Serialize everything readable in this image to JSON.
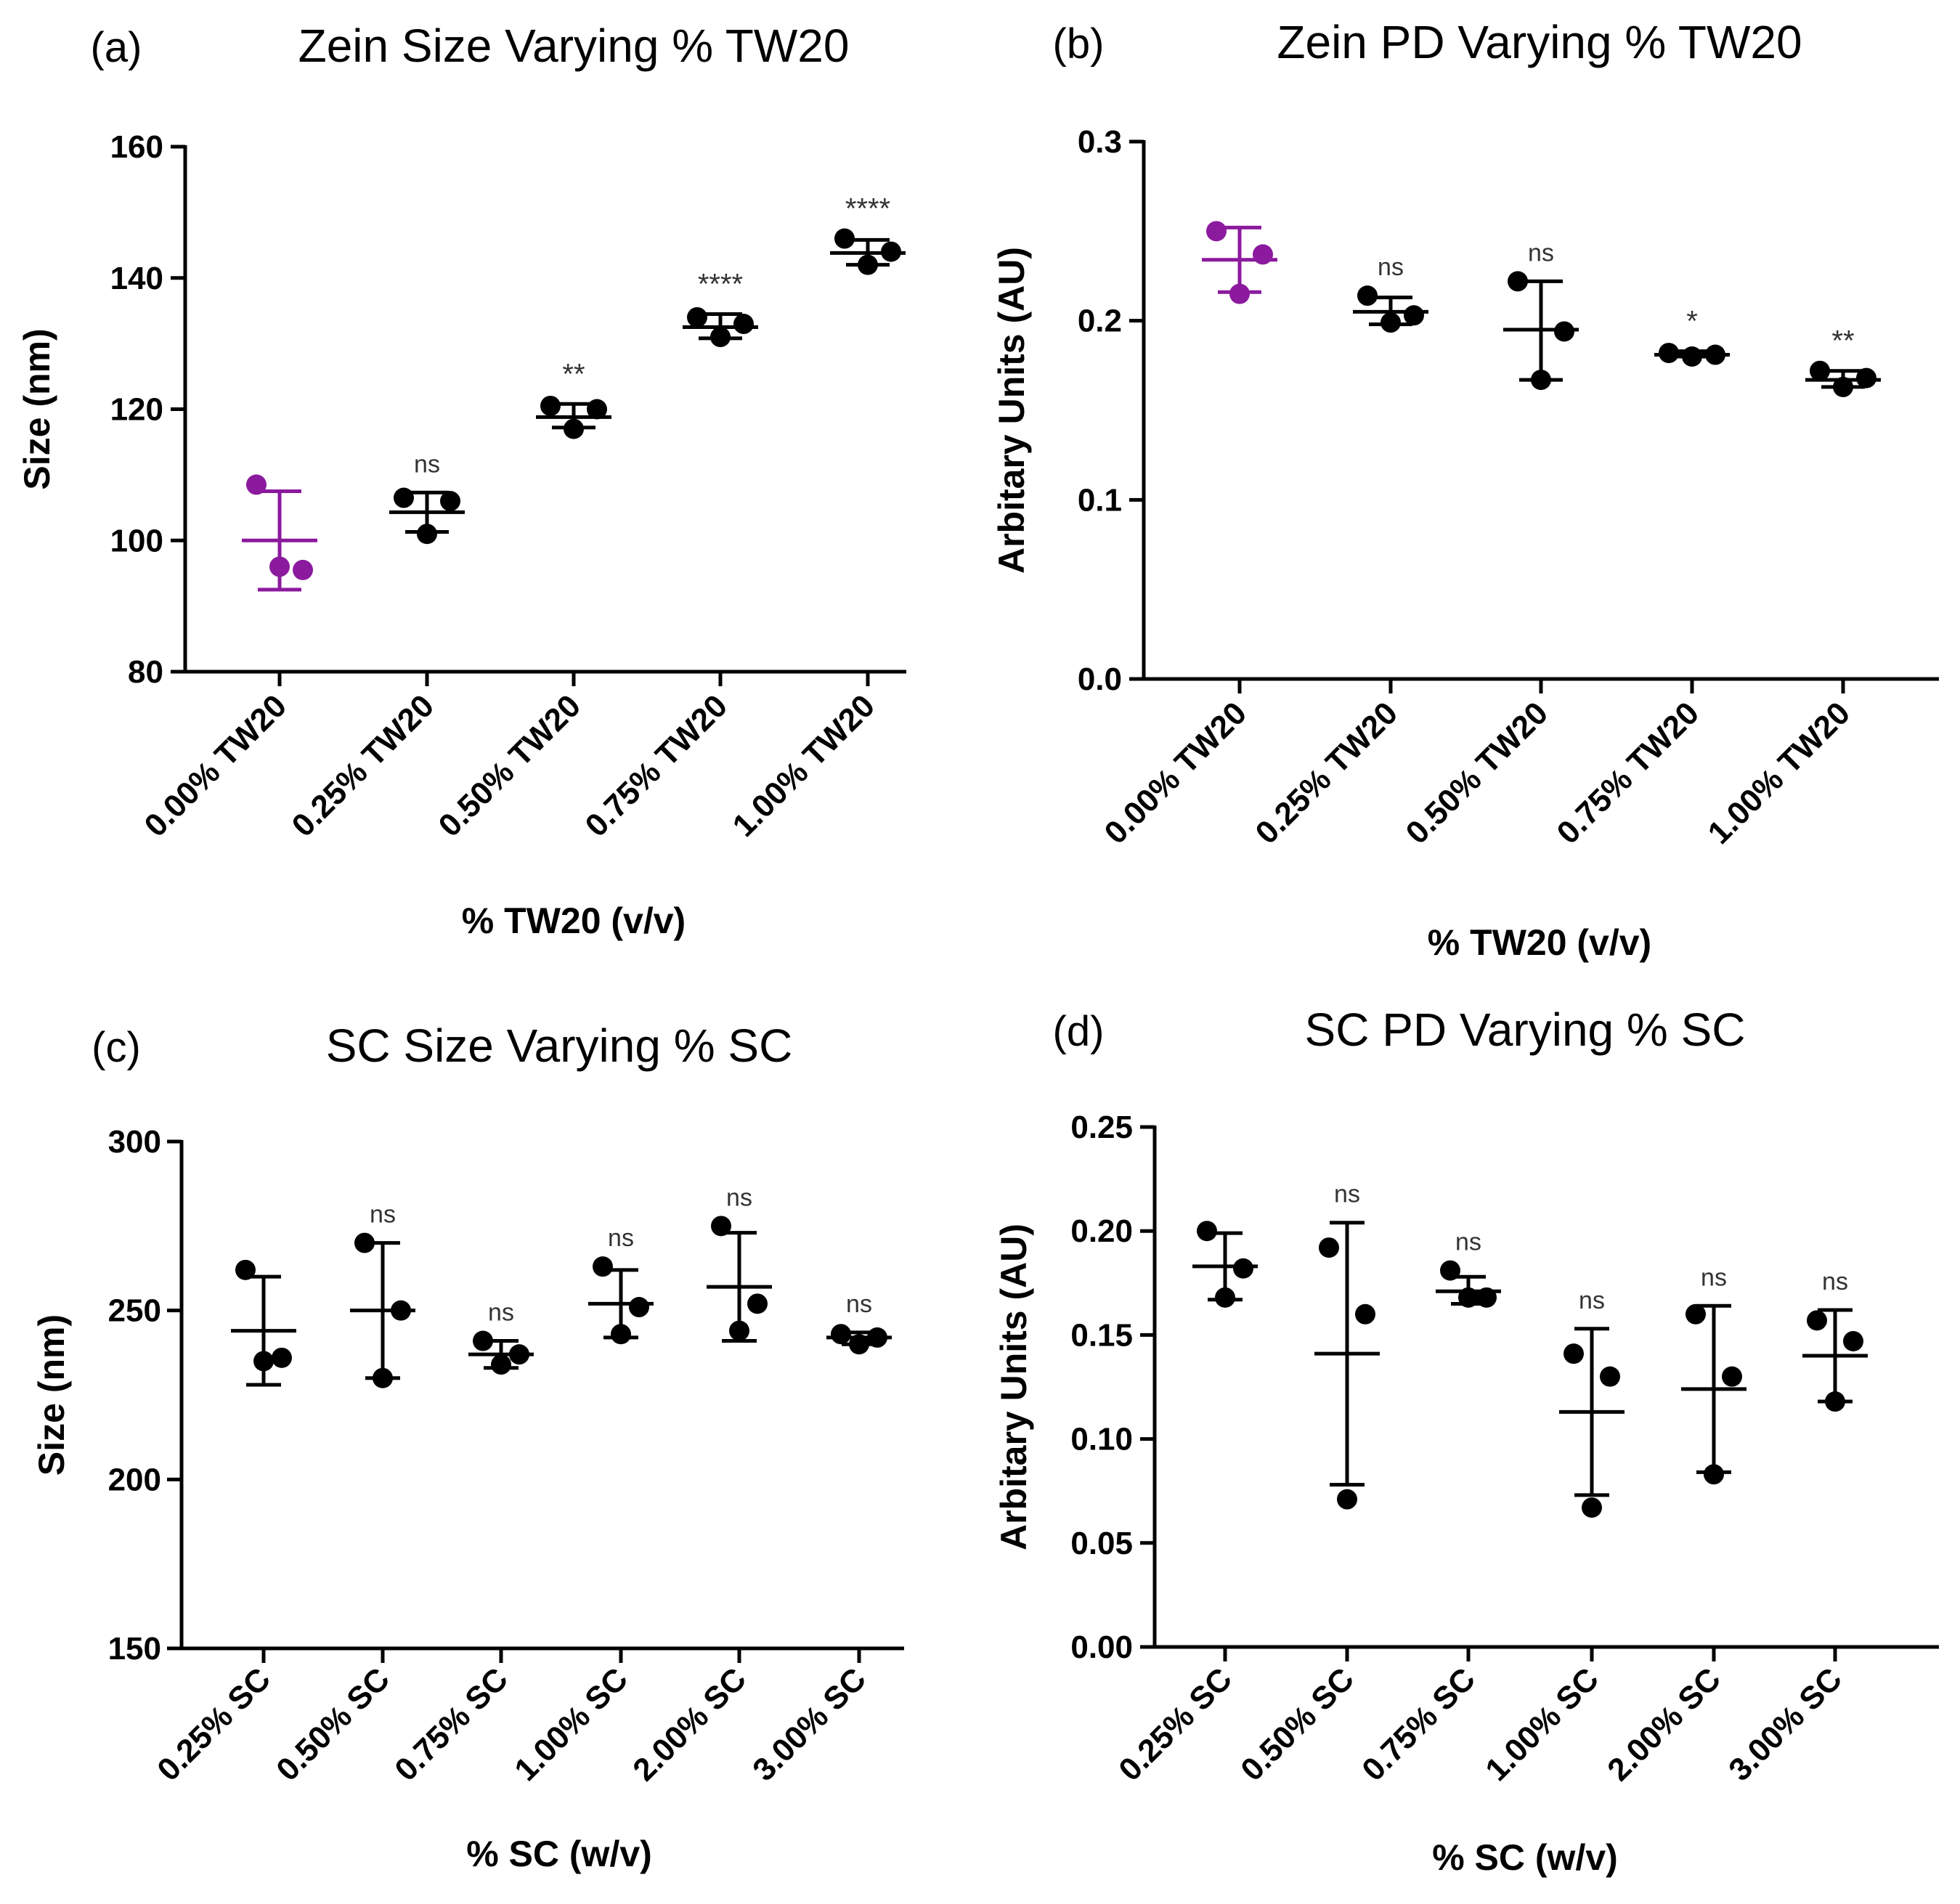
{
  "colors": {
    "control": "#8B1A9E",
    "default": "#000000"
  },
  "chart_data": [
    {
      "panel": "(a)",
      "type": "scatter",
      "title": "Zein Size Varying % TW20",
      "xlabel": "% TW20 (v/v)",
      "ylabel": "Size (nm)",
      "ylim": [
        80,
        160
      ],
      "yticks": [
        "80",
        "100",
        "120",
        "140",
        "160"
      ],
      "categories": [
        "0.00% TW20",
        "0.25% TW20",
        "0.50% TW20",
        "0.75% TW20",
        "1.00% TW20"
      ],
      "groups": [
        {
          "points": [
            108.5,
            95.5,
            96
          ],
          "mean": 100,
          "sd_low": 92.5,
          "sd_high": 107.5,
          "sig": "",
          "control": true
        },
        {
          "points": [
            106.5,
            106,
            101
          ],
          "mean": 104.3,
          "sd_low": 101.3,
          "sd_high": 107.3,
          "sig": "ns",
          "control": false
        },
        {
          "points": [
            120.5,
            120,
            117
          ],
          "mean": 118.8,
          "sd_low": 117.2,
          "sd_high": 120.8,
          "sig": "**",
          "control": false
        },
        {
          "points": [
            134,
            133,
            131
          ],
          "mean": 132.5,
          "sd_low": 130.8,
          "sd_high": 134.5,
          "sig": "****",
          "control": false
        },
        {
          "points": [
            146,
            144,
            142
          ],
          "mean": 143.8,
          "sd_low": 142,
          "sd_high": 145.8,
          "sig": "****",
          "control": false
        }
      ]
    },
    {
      "panel": "(b)",
      "type": "scatter",
      "title": "Zein PD Varying % TW20",
      "xlabel": "% TW20 (v/v)",
      "ylabel": "Arbitary Units (AU)",
      "ylim": [
        0,
        0.3
      ],
      "yticks": [
        "0.0",
        "0.1",
        "0.2",
        "0.3"
      ],
      "categories": [
        "0.00% TW20",
        "0.25% TW20",
        "0.50% TW20",
        "0.75% TW20",
        "1.00% TW20"
      ],
      "groups": [
        {
          "points": [
            0.25,
            0.237,
            0.215
          ],
          "mean": 0.234,
          "sd_low": 0.216,
          "sd_high": 0.252,
          "sig": "",
          "control": true
        },
        {
          "points": [
            0.214,
            0.203,
            0.199
          ],
          "mean": 0.205,
          "sd_low": 0.198,
          "sd_high": 0.213,
          "sig": "ns",
          "control": false
        },
        {
          "points": [
            0.222,
            0.194,
            0.167
          ],
          "mean": 0.195,
          "sd_low": 0.167,
          "sd_high": 0.222,
          "sig": "ns",
          "control": false
        },
        {
          "points": [
            0.182,
            0.181,
            0.18
          ],
          "mean": 0.181,
          "sd_low": 0.18,
          "sd_high": 0.183,
          "sig": "*",
          "control": false
        },
        {
          "points": [
            0.172,
            0.168,
            0.163
          ],
          "mean": 0.167,
          "sd_low": 0.163,
          "sd_high": 0.172,
          "sig": "**",
          "control": false
        }
      ]
    },
    {
      "panel": "(c)",
      "type": "scatter",
      "title": "SC Size Varying % SC",
      "xlabel": "% SC (w/v)",
      "ylabel": "Size (nm)",
      "ylim": [
        150,
        300
      ],
      "yticks": [
        "150",
        "200",
        "250",
        "300"
      ],
      "categories": [
        "0.25% SC",
        "0.50% SC",
        "0.75% SC",
        "1.00% SC",
        "2.00% SC",
        "3.00% SC"
      ],
      "groups": [
        {
          "points": [
            262,
            236,
            235
          ],
          "mean": 244,
          "sd_low": 228,
          "sd_high": 260,
          "sig": "",
          "control": false
        },
        {
          "points": [
            270,
            250,
            230
          ],
          "mean": 250,
          "sd_low": 230,
          "sd_high": 270,
          "sig": "ns",
          "control": false
        },
        {
          "points": [
            241,
            237,
            234
          ],
          "mean": 237,
          "sd_low": 233,
          "sd_high": 241,
          "sig": "ns",
          "control": false
        },
        {
          "points": [
            263,
            251,
            243
          ],
          "mean": 252,
          "sd_low": 242,
          "sd_high": 262,
          "sig": "ns",
          "control": false
        },
        {
          "points": [
            275,
            252,
            244
          ],
          "mean": 257,
          "sd_low": 241,
          "sd_high": 273,
          "sig": "ns",
          "control": false
        },
        {
          "points": [
            243,
            242,
            240
          ],
          "mean": 242,
          "sd_low": 240,
          "sd_high": 243.5,
          "sig": "ns",
          "control": false
        }
      ]
    },
    {
      "panel": "(d)",
      "type": "scatter",
      "title": "SC PD Varying % SC",
      "xlabel": "% SC (w/v)",
      "ylabel": "Arbitary Units (AU)",
      "ylim": [
        0,
        0.25
      ],
      "yticks": [
        "0.00",
        "0.05",
        "0.10",
        "0.15",
        "0.20",
        "0.25"
      ],
      "categories": [
        "0.25% SC",
        "0.50% SC",
        "0.75% SC",
        "1.00% SC",
        "2.00% SC",
        "3.00% SC"
      ],
      "groups": [
        {
          "points": [
            0.2,
            0.182,
            0.168
          ],
          "mean": 0.183,
          "sd_low": 0.167,
          "sd_high": 0.199,
          "sig": "",
          "control": false
        },
        {
          "points": [
            0.192,
            0.16,
            0.071
          ],
          "mean": 0.141,
          "sd_low": 0.078,
          "sd_high": 0.204,
          "sig": "ns",
          "control": false
        },
        {
          "points": [
            0.181,
            0.168,
            0.168
          ],
          "mean": 0.171,
          "sd_low": 0.165,
          "sd_high": 0.178,
          "sig": "ns",
          "control": false
        },
        {
          "points": [
            0.141,
            0.13,
            0.067
          ],
          "mean": 0.113,
          "sd_low": 0.073,
          "sd_high": 0.153,
          "sig": "ns",
          "control": false
        },
        {
          "points": [
            0.16,
            0.13,
            0.083
          ],
          "mean": 0.124,
          "sd_low": 0.084,
          "sd_high": 0.164,
          "sig": "ns",
          "control": false
        },
        {
          "points": [
            0.157,
            0.147,
            0.118
          ],
          "mean": 0.14,
          "sd_low": 0.118,
          "sd_high": 0.162,
          "sig": "ns",
          "control": false
        }
      ]
    }
  ]
}
